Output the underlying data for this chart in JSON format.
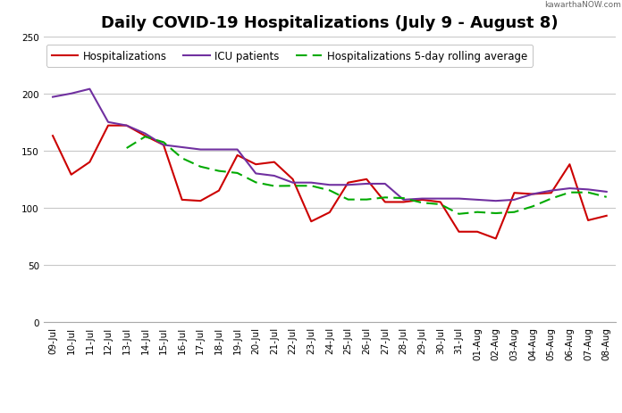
{
  "title": "Daily COVID-19 Hospitalizations (July 9 - August 8)",
  "watermark": "kawarthaNOW.com",
  "labels": [
    "09-Jul",
    "10-Jul",
    "11-Jul",
    "12-Jul",
    "13-Jul",
    "14-Jul",
    "15-Jul",
    "16-Jul",
    "17-Jul",
    "18-Jul",
    "19-Jul",
    "20-Jul",
    "21-Jul",
    "22-Jul",
    "23-Jul",
    "24-Jul",
    "25-Jul",
    "26-Jul",
    "27-Jul",
    "28-Jul",
    "29-Jul",
    "30-Jul",
    "31-Jul",
    "01-Aug",
    "02-Aug",
    "03-Aug",
    "04-Aug",
    "05-Aug",
    "06-Aug",
    "07-Aug",
    "08-Aug"
  ],
  "hospitalizations": [
    163,
    129,
    140,
    172,
    172,
    163,
    155,
    107,
    106,
    115,
    146,
    138,
    140,
    125,
    88,
    96,
    122,
    125,
    105,
    105,
    107,
    105,
    79,
    79,
    73,
    113,
    112,
    113,
    138,
    89,
    93
  ],
  "icu": [
    197,
    200,
    204,
    175,
    172,
    165,
    155,
    153,
    151,
    151,
    151,
    130,
    128,
    122,
    122,
    120,
    120,
    121,
    121,
    107,
    108,
    108,
    108,
    107,
    106,
    107,
    112,
    115,
    117,
    116,
    114
  ],
  "rolling_avg": [
    null,
    null,
    null,
    null,
    152.2,
    162.2,
    157.4,
    143.4,
    136.0,
    132.2,
    130.4,
    122.2,
    119.0,
    119.2,
    119.2,
    115.2,
    107.2,
    107.2,
    109.0,
    108.4,
    104.4,
    103.0,
    94.6,
    96.2,
    95.2,
    96.2,
    101.2,
    108.0,
    113.4,
    113.4,
    109.4
  ],
  "hosp_color": "#cc0000",
  "icu_color": "#7030a0",
  "rolling_color": "#00aa00",
  "legend_hosp": "Hospitalizations",
  "legend_icu": "ICU patients",
  "legend_rolling": "Hospitalizations 5-day rolling average",
  "ylim": [
    0,
    250
  ],
  "yticks": [
    0,
    50,
    100,
    150,
    200,
    250
  ],
  "bg_color": "#ffffff",
  "grid_color": "#c8c8c8",
  "title_fontsize": 13,
  "legend_fontsize": 8.5,
  "tick_fontsize": 7.5
}
